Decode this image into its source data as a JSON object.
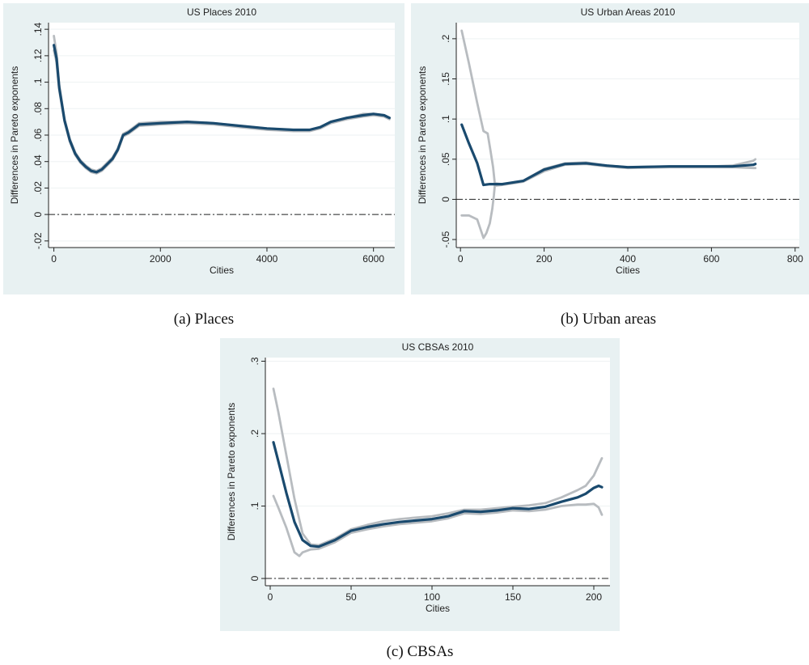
{
  "chart_data": [
    {
      "type": "line",
      "title": "US Places 2010",
      "xlabel": "Cities",
      "ylabel": "Differences in Pareto exponents",
      "caption": "(a)  Places",
      "xlim": [
        -100,
        6400
      ],
      "ylim": [
        -0.025,
        0.145
      ],
      "xticks": [
        0,
        2000,
        4000,
        6000
      ],
      "xtick_labels": [
        "0",
        "2000",
        "4000",
        "6000"
      ],
      "yticks": [
        -0.02,
        0,
        0.02,
        0.04,
        0.06,
        0.08,
        0.1,
        0.12,
        0.14
      ],
      "ytick_labels": [
        "-.02",
        "0",
        ".02",
        ".04",
        ".06",
        ".08",
        ".1",
        ".12",
        ".14"
      ],
      "reference_line": 0,
      "colors": {
        "estimate": "#1a4a6e",
        "band": "#b8bcc0",
        "reference": "#222222"
      },
      "series": [
        {
          "role": "upper",
          "x": [
            0,
            50,
            100,
            200,
            300,
            400,
            500,
            600,
            700,
            800,
            900,
            1000,
            1100,
            1200,
            1300,
            1400,
            1500,
            1600,
            2000,
            2500,
            3000,
            3500,
            4000,
            4500,
            4800,
            5000,
            5200,
            5500,
            5800,
            6000,
            6200,
            6300
          ],
          "values": [
            0.135,
            0.122,
            0.098,
            0.072,
            0.057,
            0.047,
            0.041,
            0.037,
            0.034,
            0.033,
            0.035,
            0.039,
            0.043,
            0.05,
            0.061,
            0.063,
            0.066,
            0.069,
            0.07,
            0.07,
            0.069,
            0.067,
            0.065,
            0.064,
            0.064,
            0.066,
            0.07,
            0.073,
            0.076,
            0.076,
            0.075,
            0.073
          ]
        },
        {
          "role": "estimate",
          "x": [
            0,
            50,
            100,
            200,
            300,
            400,
            500,
            600,
            700,
            800,
            900,
            1000,
            1100,
            1200,
            1300,
            1400,
            1500,
            1600,
            2000,
            2500,
            3000,
            3500,
            4000,
            4500,
            4800,
            5000,
            5200,
            5500,
            5800,
            6000,
            6200,
            6300
          ],
          "values": [
            0.128,
            0.118,
            0.096,
            0.071,
            0.056,
            0.046,
            0.04,
            0.036,
            0.033,
            0.032,
            0.034,
            0.038,
            0.042,
            0.049,
            0.06,
            0.062,
            0.065,
            0.068,
            0.069,
            0.07,
            0.069,
            0.067,
            0.065,
            0.064,
            0.064,
            0.066,
            0.07,
            0.073,
            0.075,
            0.076,
            0.075,
            0.073
          ]
        },
        {
          "role": "lower",
          "x": [
            0,
            50,
            100,
            200,
            300,
            400,
            500,
            600,
            700,
            800,
            900,
            1000,
            1100,
            1200,
            1300,
            1400,
            1500,
            1600,
            2000,
            2500,
            3000,
            3500,
            4000,
            4500,
            4800,
            5000,
            5200,
            5500,
            5800,
            6000,
            6200,
            6300
          ],
          "values": [
            0.124,
            0.115,
            0.094,
            0.07,
            0.055,
            0.045,
            0.039,
            0.035,
            0.032,
            0.031,
            0.033,
            0.037,
            0.041,
            0.048,
            0.059,
            0.061,
            0.064,
            0.067,
            0.068,
            0.069,
            0.068,
            0.066,
            0.064,
            0.063,
            0.063,
            0.065,
            0.069,
            0.072,
            0.074,
            0.075,
            0.074,
            0.072
          ]
        }
      ]
    },
    {
      "type": "line",
      "title": "US Urban Areas 2010",
      "xlabel": "Cities",
      "ylabel": "Differences in Pareto exponents",
      "caption": "(b) Urban areas",
      "xlim": [
        -10,
        810
      ],
      "ylim": [
        -0.06,
        0.22
      ],
      "xticks": [
        0,
        200,
        400,
        600,
        800
      ],
      "xtick_labels": [
        "0",
        "200",
        "400",
        "600",
        "800"
      ],
      "yticks": [
        -0.05,
        0,
        0.05,
        0.1,
        0.15,
        0.2
      ],
      "ytick_labels": [
        "-.05",
        "0",
        ".05",
        ".1",
        ".15",
        ".2"
      ],
      "reference_line": 0,
      "colors": {
        "estimate": "#1a4a6e",
        "band": "#b8bcc0",
        "reference": "#222222"
      },
      "series": [
        {
          "role": "upper",
          "x": [
            3,
            20,
            40,
            55,
            65,
            72,
            78,
            82,
            100,
            150,
            200,
            250,
            300,
            350,
            400,
            500,
            600,
            650,
            700,
            705
          ],
          "values": [
            0.21,
            0.17,
            0.12,
            0.085,
            0.082,
            0.06,
            0.04,
            0.02,
            0.019,
            0.023,
            0.038,
            0.045,
            0.046,
            0.042,
            0.04,
            0.041,
            0.041,
            0.042,
            0.048,
            0.05
          ]
        },
        {
          "role": "estimate",
          "x": [
            3,
            20,
            40,
            55,
            70,
            100,
            150,
            200,
            250,
            300,
            350,
            400,
            500,
            600,
            650,
            700,
            705
          ],
          "values": [
            0.093,
            0.07,
            0.045,
            0.018,
            0.019,
            0.019,
            0.023,
            0.037,
            0.044,
            0.045,
            0.042,
            0.04,
            0.041,
            0.041,
            0.041,
            0.043,
            0.044
          ]
        },
        {
          "role": "lower",
          "x": [
            3,
            20,
            40,
            55,
            62,
            70,
            76,
            80,
            82,
            100,
            150,
            200,
            250,
            300,
            350,
            400,
            500,
            600,
            650,
            700,
            705
          ],
          "values": [
            -0.02,
            -0.02,
            -0.025,
            -0.048,
            -0.042,
            -0.03,
            -0.012,
            0.005,
            0.017,
            0.018,
            0.022,
            0.035,
            0.043,
            0.044,
            0.041,
            0.039,
            0.04,
            0.04,
            0.04,
            0.039,
            0.039
          ]
        }
      ]
    },
    {
      "type": "line",
      "title": "US CBSAs 2010",
      "xlabel": "Cities",
      "ylabel": "Differences in Pareto exponents",
      "caption": "(c)  CBSAs",
      "xlim": [
        -3,
        210
      ],
      "ylim": [
        -0.01,
        0.305
      ],
      "xticks": [
        0,
        50,
        100,
        150,
        200
      ],
      "xtick_labels": [
        "0",
        "50",
        "100",
        "150",
        "200"
      ],
      "yticks": [
        0,
        0.1,
        0.2,
        0.3
      ],
      "ytick_labels": [
        "0",
        ".1",
        ".2",
        ".3"
      ],
      "reference_line": 0,
      "colors": {
        "estimate": "#1a4a6e",
        "band": "#b8bcc0",
        "reference": "#222222"
      },
      "series": [
        {
          "role": "upper",
          "x": [
            2,
            5,
            10,
            15,
            20,
            25,
            30,
            40,
            50,
            60,
            70,
            80,
            90,
            100,
            110,
            120,
            130,
            140,
            150,
            160,
            170,
            180,
            190,
            195,
            200,
            205
          ],
          "values": [
            0.262,
            0.23,
            0.17,
            0.11,
            0.062,
            0.047,
            0.046,
            0.055,
            0.068,
            0.074,
            0.079,
            0.082,
            0.084,
            0.086,
            0.09,
            0.095,
            0.095,
            0.097,
            0.099,
            0.101,
            0.104,
            0.112,
            0.122,
            0.128,
            0.142,
            0.166
          ]
        },
        {
          "role": "estimate",
          "x": [
            2,
            5,
            10,
            15,
            20,
            25,
            30,
            40,
            50,
            60,
            70,
            80,
            90,
            100,
            110,
            120,
            130,
            140,
            150,
            160,
            170,
            180,
            190,
            195,
            200,
            203,
            205
          ],
          "values": [
            0.188,
            0.162,
            0.118,
            0.078,
            0.053,
            0.045,
            0.044,
            0.053,
            0.066,
            0.071,
            0.075,
            0.078,
            0.08,
            0.082,
            0.086,
            0.093,
            0.092,
            0.094,
            0.097,
            0.096,
            0.099,
            0.106,
            0.112,
            0.117,
            0.125,
            0.128,
            0.126
          ]
        },
        {
          "role": "lower",
          "x": [
            2,
            5,
            10,
            15,
            18,
            20,
            25,
            30,
            40,
            50,
            60,
            70,
            80,
            90,
            100,
            110,
            120,
            130,
            140,
            150,
            160,
            170,
            180,
            190,
            195,
            200,
            203,
            205
          ],
          "values": [
            0.114,
            0.098,
            0.07,
            0.036,
            0.031,
            0.036,
            0.04,
            0.041,
            0.05,
            0.063,
            0.068,
            0.072,
            0.075,
            0.077,
            0.079,
            0.083,
            0.09,
            0.089,
            0.091,
            0.094,
            0.093,
            0.095,
            0.1,
            0.102,
            0.102,
            0.103,
            0.098,
            0.088
          ]
        }
      ]
    }
  ]
}
